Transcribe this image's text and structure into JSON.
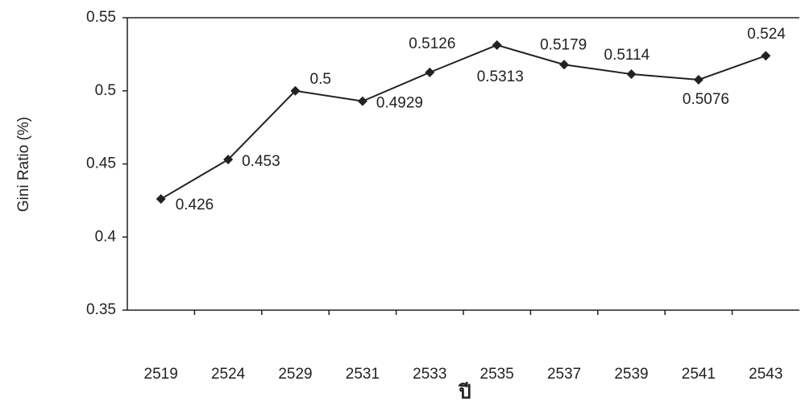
{
  "chart_data": {
    "type": "line",
    "y_label": "Gini Ratio  (%)",
    "x_label": "ปี",
    "categories": [
      "2519",
      "2524",
      "2529",
      "2531",
      "2533",
      "2535",
      "2537",
      "2539",
      "2541",
      "2543"
    ],
    "values": [
      0.426,
      0.453,
      0.5,
      0.4929,
      0.5126,
      0.5313,
      0.5179,
      0.5114,
      0.5076,
      0.524
    ],
    "color": "#222222",
    "ylim": [
      0.35,
      0.55
    ],
    "yticks": [
      0.35,
      0.4,
      0.45,
      0.5,
      0.55
    ],
    "grid": false
  }
}
